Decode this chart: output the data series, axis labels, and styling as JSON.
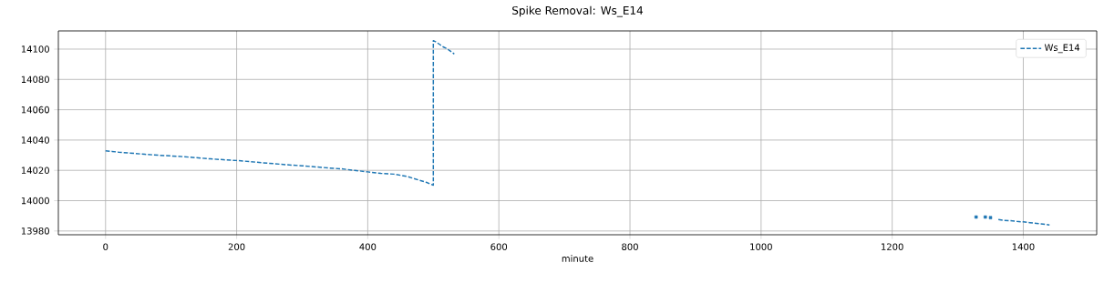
{
  "chart_data": {
    "type": "line",
    "title": "Spike Removal: Ws_E14",
    "xlabel": "minute",
    "x": [
      0,
      10,
      20,
      40,
      60,
      80,
      100,
      120,
      140,
      160,
      180,
      200,
      220,
      240,
      260,
      280,
      300,
      320,
      340,
      360,
      380,
      400,
      420,
      440,
      460,
      475,
      490,
      500,
      500,
      505,
      510,
      515,
      520,
      525,
      532,
      533,
      1362,
      1370,
      1380,
      1390,
      1400,
      1410,
      1420,
      1430,
      1440
    ],
    "series": [
      {
        "name": "Ws_E14",
        "color": "#1f77b4",
        "values": [
          14032.9,
          14032.5,
          14032,
          14031.3,
          14030.6,
          14030,
          14029.5,
          14029,
          14028.3,
          14027.6,
          14027,
          14026.5,
          14025.8,
          14025,
          14024.3,
          14023.6,
          14023,
          14022.3,
          14021.6,
          14021,
          14020,
          14019,
          14018,
          14017.5,
          14016,
          14014,
          14012,
          14010.2,
          14105.6,
          14104.5,
          14103,
          14101.5,
          14100.5,
          14099,
          14096.8,
          null,
          13987.5,
          13987,
          13986.8,
          13986.3,
          13986,
          13985.5,
          13985,
          13984.5,
          13984
        ]
      },
      {
        "type": "scatter",
        "marker": "square",
        "color": "#1f77b4",
        "x": [
          1328,
          1342,
          1350
        ],
        "values": [
          13989.2,
          13989.2,
          13988.8
        ]
      }
    ],
    "xlim": [
      -72,
      1512
    ],
    "ylim": [
      13977.5,
      14112
    ],
    "xticks": [
      0,
      200,
      400,
      600,
      800,
      1000,
      1200,
      1400
    ],
    "yticks": [
      13980,
      14000,
      14020,
      14040,
      14060,
      14080,
      14100
    ],
    "grid": true,
    "legend": "top right",
    "line_style": "dashed"
  }
}
